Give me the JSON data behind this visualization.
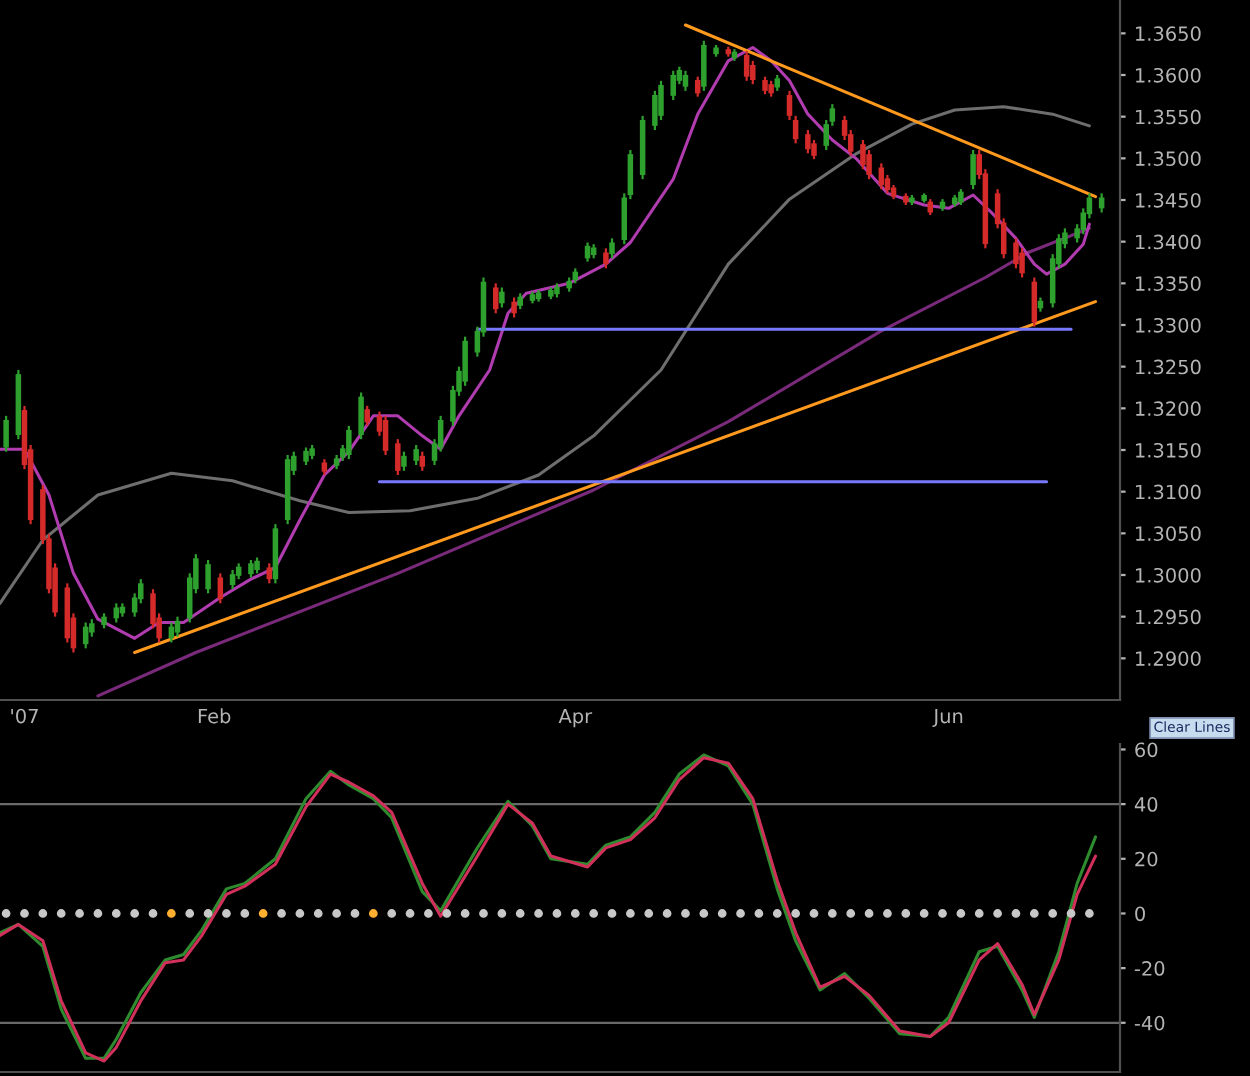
{
  "chart_data": [
    {
      "type": "candlestick",
      "x": [
        "2006-12-29",
        "2006-12-31",
        "2007-01-01",
        "2007-01-02",
        "2007-01-04",
        "2007-01-05",
        "2007-01-06",
        "2007-01-08",
        "2007-01-09",
        "2007-01-11",
        "2007-01-12",
        "2007-01-14",
        "2007-01-16",
        "2007-01-17",
        "2007-01-19",
        "2007-01-20",
        "2007-01-22",
        "2007-01-23",
        "2007-01-25",
        "2007-01-26",
        "2007-01-28",
        "2007-01-29",
        "2007-01-31",
        "2007-02-02",
        "2007-02-04",
        "2007-02-05",
        "2007-02-07",
        "2007-02-08",
        "2007-02-10",
        "2007-02-11",
        "2007-02-13",
        "2007-02-14",
        "2007-02-16",
        "2007-02-17",
        "2007-02-19",
        "2007-02-21",
        "2007-02-22",
        "2007-02-23",
        "2007-02-25",
        "2007-02-26",
        "2007-02-28",
        "2007-03-01",
        "2007-03-03",
        "2007-03-04",
        "2007-03-06",
        "2007-03-07",
        "2007-03-09",
        "2007-03-10",
        "2007-03-12",
        "2007-03-13",
        "2007-03-14",
        "2007-03-16",
        "2007-03-17",
        "2007-03-19",
        "2007-03-20",
        "2007-03-22",
        "2007-03-23",
        "2007-03-25",
        "2007-03-26",
        "2007-03-28",
        "2007-03-29",
        "2007-03-31",
        "2007-04-01",
        "2007-04-03",
        "2007-04-04",
        "2007-04-06",
        "2007-04-07",
        "2007-04-09",
        "2007-04-10",
        "2007-04-12",
        "2007-04-14",
        "2007-04-15",
        "2007-04-17",
        "2007-04-18",
        "2007-04-19",
        "2007-04-21",
        "2007-04-22",
        "2007-04-24",
        "2007-04-26",
        "2007-04-27",
        "2007-04-29",
        "2007-04-30",
        "2007-05-02",
        "2007-05-03",
        "2007-05-04",
        "2007-05-06",
        "2007-05-07",
        "2007-05-09",
        "2007-05-10",
        "2007-05-12",
        "2007-05-13",
        "2007-05-15",
        "2007-05-16",
        "2007-05-18",
        "2007-05-19",
        "2007-05-21",
        "2007-05-22",
        "2007-05-23",
        "2007-05-25",
        "2007-05-26",
        "2007-05-28",
        "2007-05-29",
        "2007-05-31",
        "2007-06-02",
        "2007-06-03",
        "2007-06-05",
        "2007-06-06",
        "2007-06-07",
        "2007-06-09",
        "2007-06-10",
        "2007-06-12",
        "2007-06-13",
        "2007-06-15",
        "2007-06-16",
        "2007-06-18",
        "2007-06-19",
        "2007-06-20",
        "2007-06-22",
        "2007-06-23",
        "2007-06-24",
        "2007-06-26"
      ],
      "ohlc": [
        [
          1.3153,
          1.3191,
          1.3148,
          1.3186
        ],
        [
          1.3168,
          1.3246,
          1.3163,
          1.3241
        ],
        [
          1.3198,
          1.3203,
          1.3127,
          1.3132
        ],
        [
          1.3151,
          1.3156,
          1.3061,
          1.3066
        ],
        [
          1.3103,
          1.3108,
          1.3037,
          1.3042
        ],
        [
          1.3044,
          1.3049,
          1.2978,
          1.2983
        ],
        [
          1.3009,
          1.3014,
          1.295,
          1.2955
        ],
        [
          1.2985,
          1.299,
          1.2919,
          1.2924
        ],
        [
          1.2949,
          1.2954,
          1.2907,
          1.2912
        ],
        [
          1.2917,
          1.2943,
          1.2912,
          1.2938
        ],
        [
          1.2931,
          1.2947,
          1.2926,
          1.2942
        ],
        [
          1.294,
          1.2954,
          1.2936,
          1.295
        ],
        [
          1.2948,
          1.2966,
          1.2943,
          1.2961
        ],
        [
          1.2954,
          1.2966,
          1.295,
          1.2962
        ],
        [
          1.2955,
          1.2978,
          1.295,
          1.2973
        ],
        [
          1.2971,
          1.2995,
          1.2966,
          1.299
        ],
        [
          1.2978,
          1.2983,
          1.2936,
          1.2941
        ],
        [
          1.2949,
          1.2954,
          1.2919,
          1.2924
        ],
        [
          1.2924,
          1.2943,
          1.2919,
          1.2938
        ],
        [
          1.2931,
          1.295,
          1.2926,
          1.2945
        ],
        [
          1.2948,
          1.3002,
          1.2943,
          1.2997
        ],
        [
          1.2983,
          1.3025,
          1.2978,
          1.302
        ],
        [
          1.2983,
          1.3018,
          1.2978,
          1.3013
        ],
        [
          1.2997,
          1.3002,
          1.2966,
          1.2971
        ],
        [
          1.2988,
          1.3006,
          1.2983,
          1.3001
        ],
        [
          1.2999,
          1.3014,
          1.2995,
          1.301
        ],
        [
          1.3001,
          1.3018,
          1.2997,
          1.3014
        ],
        [
          1.3006,
          1.3021,
          1.3002,
          1.3017
        ],
        [
          1.3009,
          1.3014,
          1.299,
          1.2995
        ],
        [
          1.2995,
          1.3061,
          1.299,
          1.3056
        ],
        [
          1.3066,
          1.3144,
          1.3061,
          1.3139
        ],
        [
          1.3125,
          1.3148,
          1.312,
          1.3143
        ],
        [
          1.3136,
          1.3153,
          1.3132,
          1.3149
        ],
        [
          1.3143,
          1.3156,
          1.3139,
          1.3152
        ],
        [
          1.3135,
          1.3139,
          1.312,
          1.3124
        ],
        [
          1.3131,
          1.3144,
          1.3127,
          1.314
        ],
        [
          1.3141,
          1.3156,
          1.3137,
          1.3152
        ],
        [
          1.3144,
          1.3179,
          1.3139,
          1.3174
        ],
        [
          1.3168,
          1.3219,
          1.3163,
          1.3214
        ],
        [
          1.3199,
          1.3203,
          1.3179,
          1.3183
        ],
        [
          1.3191,
          1.3196,
          1.3167,
          1.3172
        ],
        [
          1.3186,
          1.3191,
          1.3144,
          1.3149
        ],
        [
          1.3158,
          1.3163,
          1.312,
          1.3125
        ],
        [
          1.313,
          1.3148,
          1.3125,
          1.3143
        ],
        [
          1.3137,
          1.3156,
          1.3132,
          1.3151
        ],
        [
          1.3143,
          1.3148,
          1.3125,
          1.313
        ],
        [
          1.3137,
          1.3163,
          1.3132,
          1.3158
        ],
        [
          1.3153,
          1.3191,
          1.3148,
          1.3186
        ],
        [
          1.3184,
          1.3227,
          1.3179,
          1.3222
        ],
        [
          1.322,
          1.325,
          1.3215,
          1.3245
        ],
        [
          1.3232,
          1.3286,
          1.3227,
          1.3281
        ],
        [
          1.3267,
          1.3298,
          1.3262,
          1.3293
        ],
        [
          1.3291,
          1.3357,
          1.3286,
          1.3352
        ],
        [
          1.3345,
          1.335,
          1.3314,
          1.3319
        ],
        [
          1.3326,
          1.3345,
          1.3321,
          1.334
        ],
        [
          1.3328,
          1.3333,
          1.3309,
          1.3314
        ],
        [
          1.3323,
          1.3338,
          1.3319,
          1.3334
        ],
        [
          1.3329,
          1.334,
          1.3326,
          1.3337
        ],
        [
          1.3331,
          1.3342,
          1.3328,
          1.3339
        ],
        [
          1.3334,
          1.3345,
          1.3331,
          1.3342
        ],
        [
          1.3337,
          1.335,
          1.3333,
          1.3346
        ],
        [
          1.3344,
          1.3357,
          1.334,
          1.3353
        ],
        [
          1.3354,
          1.3368,
          1.335,
          1.3364
        ],
        [
          1.338,
          1.3399,
          1.3376,
          1.3395
        ],
        [
          1.3384,
          1.3397,
          1.338,
          1.3393
        ],
        [
          1.3387,
          1.3392,
          1.3368,
          1.3373
        ],
        [
          1.3385,
          1.3404,
          1.338,
          1.3399
        ],
        [
          1.3402,
          1.3458,
          1.3397,
          1.3453
        ],
        [
          1.3456,
          1.351,
          1.3451,
          1.3505
        ],
        [
          1.348,
          1.3551,
          1.3475,
          1.3546
        ],
        [
          1.3539,
          1.3581,
          1.3534,
          1.3576
        ],
        [
          1.3551,
          1.3593,
          1.3546,
          1.3588
        ],
        [
          1.3575,
          1.3605,
          1.357,
          1.36
        ],
        [
          1.3593,
          1.361,
          1.3589,
          1.3606
        ],
        [
          1.3586,
          1.3605,
          1.3581,
          1.36
        ],
        [
          1.3594,
          1.3598,
          1.3574,
          1.3578
        ],
        [
          1.3586,
          1.3641,
          1.3581,
          1.3636
        ],
        [
          1.3625,
          1.3636,
          1.3622,
          1.3633
        ],
        [
          1.3631,
          1.3634,
          1.3622,
          1.3625
        ],
        [
          1.362,
          1.3631,
          1.3617,
          1.3628
        ],
        [
          1.3624,
          1.3629,
          1.3593,
          1.3598
        ],
        [
          1.3612,
          1.3617,
          1.3589,
          1.3594
        ],
        [
          1.3594,
          1.3598,
          1.3577,
          1.3581
        ],
        [
          1.3589,
          1.3593,
          1.3574,
          1.3578
        ],
        [
          1.3585,
          1.36,
          1.3581,
          1.3596
        ],
        [
          1.3576,
          1.3581,
          1.3546,
          1.3551
        ],
        [
          1.3546,
          1.3551,
          1.3518,
          1.3523
        ],
        [
          1.3529,
          1.3534,
          1.3506,
          1.3511
        ],
        [
          1.3518,
          1.3522,
          1.3499,
          1.3503
        ],
        [
          1.3515,
          1.3546,
          1.351,
          1.3541
        ],
        [
          1.3544,
          1.3565,
          1.3539,
          1.356
        ],
        [
          1.3546,
          1.3551,
          1.3522,
          1.3527
        ],
        [
          1.3529,
          1.3534,
          1.3503,
          1.3508
        ],
        [
          1.3517,
          1.3522,
          1.3487,
          1.3492
        ],
        [
          1.3505,
          1.351,
          1.3475,
          1.348
        ],
        [
          1.3489,
          1.3494,
          1.3463,
          1.3468
        ],
        [
          1.3476,
          1.348,
          1.3458,
          1.3462
        ],
        [
          1.3465,
          1.3468,
          1.3451,
          1.3454
        ],
        [
          1.3455,
          1.3458,
          1.3444,
          1.3447
        ],
        [
          1.3447,
          1.3456,
          1.3444,
          1.3453
        ],
        [
          1.3449,
          1.3458,
          1.3447,
          1.3456
        ],
        [
          1.3448,
          1.3451,
          1.3432,
          1.3435
        ],
        [
          1.344,
          1.3451,
          1.3437,
          1.3448
        ],
        [
          1.3445,
          1.3456,
          1.3442,
          1.3453
        ],
        [
          1.3447,
          1.3463,
          1.3444,
          1.346
        ],
        [
          1.3468,
          1.351,
          1.3463,
          1.3505
        ],
        [
          1.3505,
          1.351,
          1.3475,
          1.348
        ],
        [
          1.3482,
          1.3487,
          1.3392,
          1.3397
        ],
        [
          1.3458,
          1.3463,
          1.3416,
          1.3421
        ],
        [
          1.3423,
          1.3428,
          1.338,
          1.3385
        ],
        [
          1.3399,
          1.3404,
          1.3368,
          1.3373
        ],
        [
          1.3387,
          1.3392,
          1.3357,
          1.3362
        ],
        [
          1.3352,
          1.3357,
          1.3298,
          1.3303
        ],
        [
          1.332,
          1.3333,
          1.3316,
          1.3329
        ],
        [
          1.3326,
          1.3385,
          1.3321,
          1.338
        ],
        [
          1.3373,
          1.3409,
          1.3368,
          1.3404
        ],
        [
          1.3397,
          1.3416,
          1.3392,
          1.3411
        ],
        [
          1.3404,
          1.3421,
          1.3399,
          1.3416
        ],
        [
          1.3414,
          1.344,
          1.3409,
          1.3435
        ],
        [
          1.3433,
          1.3458,
          1.3428,
          1.3453
        ],
        [
          1.344,
          1.3458,
          1.3435,
          1.3453
        ]
      ],
      "colors": [
        "#2ea02e",
        "#2ea02e",
        "#d42a2a",
        "#d42a2a",
        "#d42a2a",
        "#d42a2a",
        "#d42a2a",
        "#d42a2a",
        "#d42a2a",
        "#2ea02e",
        "#2ea02e",
        "#2ea02e",
        "#2ea02e",
        "#2ea02e",
        "#2ea02e",
        "#2ea02e",
        "#d42a2a",
        "#d42a2a",
        "#2ea02e",
        "#2ea02e",
        "#2ea02e",
        "#2ea02e",
        "#2ea02e",
        "#d42a2a",
        "#2ea02e",
        "#2ea02e",
        "#2ea02e",
        "#2ea02e",
        "#d42a2a",
        "#2ea02e",
        "#2ea02e",
        "#2ea02e",
        "#2ea02e",
        "#2ea02e",
        "#d42a2a",
        "#2ea02e",
        "#2ea02e",
        "#2ea02e",
        "#2ea02e",
        "#d42a2a",
        "#d42a2a",
        "#d42a2a",
        "#d42a2a",
        "#2ea02e",
        "#2ea02e",
        "#d42a2a",
        "#2ea02e",
        "#2ea02e",
        "#2ea02e",
        "#2ea02e",
        "#2ea02e",
        "#2ea02e",
        "#2ea02e",
        "#d42a2a",
        "#2ea02e",
        "#d42a2a",
        "#2ea02e",
        "#2ea02e",
        "#2ea02e",
        "#2ea02e",
        "#2ea02e",
        "#2ea02e",
        "#2ea02e",
        "#2ea02e",
        "#2ea02e",
        "#d42a2a",
        "#2ea02e",
        "#2ea02e",
        "#2ea02e",
        "#2ea02e",
        "#2ea02e",
        "#2ea02e",
        "#2ea02e",
        "#2ea02e",
        "#2ea02e",
        "#d42a2a",
        "#2ea02e",
        "#2ea02e",
        "#d42a2a",
        "#2ea02e",
        "#d42a2a",
        "#d42a2a",
        "#d42a2a",
        "#d42a2a",
        "#2ea02e",
        "#d42a2a",
        "#d42a2a",
        "#d42a2a",
        "#d42a2a",
        "#2ea02e",
        "#2ea02e",
        "#d42a2a",
        "#d42a2a",
        "#d42a2a",
        "#d42a2a",
        "#d42a2a",
        "#d42a2a",
        "#d42a2a",
        "#d42a2a",
        "#2ea02e",
        "#2ea02e",
        "#d42a2a",
        "#2ea02e",
        "#2ea02e",
        "#2ea02e",
        "#2ea02e",
        "#d42a2a",
        "#d42a2a",
        "#d42a2a",
        "#d42a2a",
        "#d42a2a",
        "#d42a2a",
        "#d42a2a",
        "#2ea02e",
        "#2ea02e",
        "#2ea02e",
        "#2ea02e",
        "#2ea02e",
        "#2ea02e",
        "#2ea02e",
        "#2ea02e"
      ],
      "series": [
        {
          "type": "line",
          "color": "#6e6e6e",
          "x": [
            "2006-12-28",
            "2007-01-04",
            "2007-01-13",
            "2007-01-25",
            "2007-02-04",
            "2007-02-15",
            "2007-02-23",
            "2007-03-05",
            "2007-03-16",
            "2007-03-26",
            "2007-04-04",
            "2007-04-15",
            "2007-04-26",
            "2007-05-06",
            "2007-05-17",
            "2007-05-26",
            "2007-06-02",
            "2007-06-10",
            "2007-06-18",
            "2007-06-24"
          ],
          "values": [
            1.2966,
            1.3042,
            1.3096,
            1.3122,
            1.3113,
            1.3089,
            1.3075,
            1.3077,
            1.3092,
            1.312,
            1.3167,
            1.3246,
            1.3373,
            1.3451,
            1.3506,
            1.3541,
            1.3558,
            1.3562,
            1.3553,
            1.3539
          ]
        },
        {
          "type": "line",
          "color": "#7a2a7a",
          "x": [
            "2007-01-13",
            "2007-01-29",
            "2007-03-03",
            "2007-04-04",
            "2007-04-26",
            "2007-05-21",
            "2007-06-07",
            "2007-06-14",
            "2007-06-24"
          ],
          "values": [
            1.2855,
            1.2907,
            1.3002,
            1.3102,
            1.3184,
            1.3293,
            1.3357,
            1.3387,
            1.3416
          ]
        },
        {
          "type": "line",
          "color": "#b03cb0",
          "x": [
            "2006-12-28",
            "2007-01-01",
            "2007-01-05",
            "2007-01-09",
            "2007-01-13",
            "2007-01-19",
            "2007-01-23",
            "2007-01-27",
            "2007-02-02",
            "2007-02-07",
            "2007-02-11",
            "2007-02-15",
            "2007-02-19",
            "2007-02-23",
            "2007-02-27",
            "2007-03-03",
            "2007-03-07",
            "2007-03-10",
            "2007-03-13",
            "2007-03-18",
            "2007-03-21",
            "2007-03-24",
            "2007-03-31",
            "2007-04-06",
            "2007-04-10",
            "2007-04-17",
            "2007-04-21",
            "2007-04-26",
            "2007-04-30",
            "2007-05-03",
            "2007-05-06",
            "2007-05-09",
            "2007-05-13",
            "2007-05-17",
            "2007-05-22",
            "2007-05-28",
            "2007-06-01",
            "2007-06-05",
            "2007-06-08",
            "2007-06-12",
            "2007-06-15",
            "2007-06-17",
            "2007-06-20",
            "2007-06-23",
            "2007-06-24"
          ],
          "values": [
            1.3151,
            1.3151,
            1.3096,
            1.3002,
            1.2947,
            1.2924,
            1.2943,
            1.2943,
            1.2973,
            1.2995,
            1.3009,
            1.3066,
            1.312,
            1.3148,
            1.3191,
            1.3191,
            1.3167,
            1.3151,
            1.3191,
            1.3246,
            1.3314,
            1.3338,
            1.335,
            1.3373,
            1.3399,
            1.3475,
            1.3553,
            1.3617,
            1.3633,
            1.3617,
            1.3593,
            1.3553,
            1.3522,
            1.3499,
            1.3458,
            1.3444,
            1.344,
            1.3456,
            1.3435,
            1.3404,
            1.3373,
            1.3361,
            1.3373,
            1.3397,
            1.3421
          ]
        },
        {
          "type": "line",
          "color": "#ff9a1e",
          "x": [
            "2007-01-19",
            "2007-06-25"
          ],
          "values": [
            1.2907,
            1.3328
          ]
        },
        {
          "type": "line",
          "color": "#ff9a1e",
          "x": [
            "2007-04-19",
            "2007-06-25"
          ],
          "values": [
            1.366,
            1.3454
          ]
        },
        {
          "type": "line",
          "color": "#7878ff",
          "x": [
            "2007-03-16",
            "2007-06-21"
          ],
          "values": [
            1.3295,
            1.3295
          ]
        },
        {
          "type": "line",
          "color": "#7878ff",
          "x": [
            "2007-02-28",
            "2007-06-17"
          ],
          "values": [
            1.3112,
            1.3112
          ]
        }
      ],
      "xlim": [
        "2006-12-28",
        "2007-06-29"
      ],
      "xticks": [
        {
          "value": "2007-01-01",
          "label": "'07"
        },
        {
          "value": "2007-02-01",
          "label": "Feb"
        },
        {
          "value": "2007-04-01",
          "label": "Apr"
        },
        {
          "value": "2007-06-01",
          "label": "Jun"
        }
      ],
      "ylim": [
        1.285,
        1.369
      ],
      "yticks": [
        {
          "value": 1.29,
          "label": "1.2900"
        },
        {
          "value": 1.295,
          "label": "1.2950"
        },
        {
          "value": 1.3,
          "label": "1.3000"
        },
        {
          "value": 1.305,
          "label": "1.3050"
        },
        {
          "value": 1.31,
          "label": "1.3100"
        },
        {
          "value": 1.315,
          "label": "1.3150"
        },
        {
          "value": 1.32,
          "label": "1.3200"
        },
        {
          "value": 1.325,
          "label": "1.3250"
        },
        {
          "value": 1.33,
          "label": "1.3300"
        },
        {
          "value": 1.335,
          "label": "1.3350"
        },
        {
          "value": 1.34,
          "label": "1.3400"
        },
        {
          "value": 1.345,
          "label": "1.3450"
        },
        {
          "value": 1.35,
          "label": "1.3500"
        },
        {
          "value": 1.355,
          "label": "1.3550"
        },
        {
          "value": 1.36,
          "label": "1.3600"
        },
        {
          "value": 1.365,
          "label": "1.3650"
        }
      ],
      "annotations": [
        "Clear Lines"
      ]
    },
    {
      "type": "line",
      "series": [
        {
          "color": "#2e8b2e",
          "x": [
            "2006-12-28",
            "2006-12-31",
            "2007-01-04",
            "2007-01-07",
            "2007-01-11",
            "2007-01-14",
            "2007-01-16",
            "2007-01-20",
            "2007-01-24",
            "2007-01-27",
            "2007-01-30",
            "2007-02-03",
            "2007-02-06",
            "2007-02-11",
            "2007-02-16",
            "2007-02-20",
            "2007-02-23",
            "2007-02-27",
            "2007-03-02",
            "2007-03-07",
            "2007-03-10",
            "2007-03-16",
            "2007-03-21",
            "2007-03-25",
            "2007-03-28",
            "2007-04-03",
            "2007-04-06",
            "2007-04-10",
            "2007-04-14",
            "2007-04-18",
            "2007-04-22",
            "2007-04-26",
            "2007-04-30",
            "2007-05-04",
            "2007-05-07",
            "2007-05-11",
            "2007-05-15",
            "2007-05-19",
            "2007-05-24",
            "2007-05-29",
            "2007-06-01",
            "2007-06-06",
            "2007-06-09",
            "2007-06-13",
            "2007-06-15",
            "2007-06-19",
            "2007-06-22",
            "2007-06-25"
          ],
          "values": [
            -7,
            -4,
            -12,
            -35,
            -53,
            -53,
            -46,
            -29,
            -17,
            -15,
            -6,
            9,
            11,
            20,
            42,
            52,
            47,
            42,
            35,
            8,
            1,
            24,
            41,
            32,
            20,
            18,
            25,
            28,
            37,
            51,
            58,
            54,
            40,
            9,
            -10,
            -28,
            -22,
            -31,
            -44,
            -45,
            -38,
            -14,
            -12,
            -28,
            -38,
            -14,
            11,
            28
          ]
        },
        {
          "color": "#d0305a",
          "x": [
            "2006-12-28",
            "2006-12-31",
            "2007-01-04",
            "2007-01-07",
            "2007-01-11",
            "2007-01-14",
            "2007-01-16",
            "2007-01-20",
            "2007-01-24",
            "2007-01-27",
            "2007-01-30",
            "2007-02-03",
            "2007-02-06",
            "2007-02-11",
            "2007-02-16",
            "2007-02-20",
            "2007-02-23",
            "2007-02-27",
            "2007-03-02",
            "2007-03-07",
            "2007-03-10",
            "2007-03-16",
            "2007-03-21",
            "2007-03-25",
            "2007-03-28",
            "2007-04-03",
            "2007-04-06",
            "2007-04-10",
            "2007-04-14",
            "2007-04-18",
            "2007-04-22",
            "2007-04-26",
            "2007-04-30",
            "2007-05-04",
            "2007-05-07",
            "2007-05-11",
            "2007-05-15",
            "2007-05-19",
            "2007-05-24",
            "2007-05-29",
            "2007-06-01",
            "2007-06-06",
            "2007-06-09",
            "2007-06-13",
            "2007-06-15",
            "2007-06-19",
            "2007-06-22",
            "2007-06-25"
          ],
          "values": [
            -8,
            -4,
            -10,
            -32,
            -51,
            -54,
            -49,
            -32,
            -18,
            -17,
            -8,
            7,
            10,
            18,
            39,
            51,
            48,
            43,
            37,
            11,
            -1,
            21,
            40,
            33,
            21,
            17,
            24,
            27,
            35,
            49,
            57,
            55,
            42,
            12,
            -7,
            -27,
            -23,
            -30,
            -43,
            -45,
            -40,
            -17,
            -11,
            -26,
            -37,
            -17,
            7,
            21
          ]
        },
        {
          "type": "scatter",
          "marker": "circle",
          "x": [
            "2006-12-29",
            "2007-01-01",
            "2007-01-04",
            "2007-01-07",
            "2007-01-10",
            "2007-01-13",
            "2007-01-16",
            "2007-01-19",
            "2007-01-22",
            "2007-01-25",
            "2007-01-28",
            "2007-01-31",
            "2007-02-03",
            "2007-02-06",
            "2007-02-09",
            "2007-02-12",
            "2007-02-15",
            "2007-02-18",
            "2007-02-21",
            "2007-02-24",
            "2007-02-27",
            "2007-03-02",
            "2007-03-05",
            "2007-03-08",
            "2007-03-11",
            "2007-03-14",
            "2007-03-17",
            "2007-03-20",
            "2007-03-23",
            "2007-03-26",
            "2007-03-29",
            "2007-04-01",
            "2007-04-04",
            "2007-04-07",
            "2007-04-10",
            "2007-04-13",
            "2007-04-16",
            "2007-04-19",
            "2007-04-22",
            "2007-04-25",
            "2007-04-28",
            "2007-05-01",
            "2007-05-04",
            "2007-05-07",
            "2007-05-10",
            "2007-05-13",
            "2007-05-16",
            "2007-05-19",
            "2007-05-22",
            "2007-05-25",
            "2007-05-28",
            "2007-05-31",
            "2007-06-03",
            "2007-06-06",
            "2007-06-09",
            "2007-06-12",
            "2007-06-15",
            "2007-06-18",
            "2007-06-21",
            "2007-06-24"
          ],
          "values": [
            0,
            0,
            0,
            0,
            0,
            0,
            0,
            0,
            0,
            0,
            0,
            0,
            0,
            0,
            0,
            0,
            0,
            0,
            0,
            0,
            0,
            0,
            0,
            0,
            0,
            0,
            0,
            0,
            0,
            0,
            0,
            0,
            0,
            0,
            0,
            0,
            0,
            0,
            0,
            0,
            0,
            0,
            0,
            0,
            0,
            0,
            0,
            0,
            0,
            0,
            0,
            0,
            0,
            0,
            0,
            0,
            0,
            0,
            0,
            0
          ],
          "colors": [
            "#c8c8c8",
            "#c8c8c8",
            "#c8c8c8",
            "#c8c8c8",
            "#c8c8c8",
            "#c8c8c8",
            "#c8c8c8",
            "#c8c8c8",
            "#c8c8c8",
            "#ffb030",
            "#c8c8c8",
            "#c8c8c8",
            "#c8c8c8",
            "#c8c8c8",
            "#ffb030",
            "#c8c8c8",
            "#c8c8c8",
            "#c8c8c8",
            "#c8c8c8",
            "#c8c8c8",
            "#ffb030",
            "#c8c8c8",
            "#c8c8c8",
            "#c8c8c8",
            "#c8c8c8",
            "#c8c8c8",
            "#c8c8c8",
            "#c8c8c8",
            "#c8c8c8",
            "#c8c8c8",
            "#c8c8c8",
            "#c8c8c8",
            "#c8c8c8",
            "#c8c8c8",
            "#c8c8c8",
            "#c8c8c8",
            "#c8c8c8",
            "#c8c8c8",
            "#c8c8c8",
            "#c8c8c8",
            "#c8c8c8",
            "#c8c8c8",
            "#c8c8c8",
            "#c8c8c8",
            "#c8c8c8",
            "#c8c8c8",
            "#c8c8c8",
            "#c8c8c8",
            "#c8c8c8",
            "#c8c8c8",
            "#c8c8c8",
            "#c8c8c8",
            "#c8c8c8",
            "#c8c8c8",
            "#c8c8c8",
            "#c8c8c8",
            "#c8c8c8",
            "#c8c8c8",
            "#c8c8c8",
            "#c8c8c8"
          ]
        }
      ],
      "ref_lines": [
        {
          "axis": "y",
          "value": 40,
          "color": "#6a6a6a"
        },
        {
          "axis": "y",
          "value": -40,
          "color": "#6a6a6a"
        }
      ],
      "xlim": [
        "2006-12-28",
        "2007-06-29"
      ],
      "ylim": [
        -58,
        62
      ],
      "yticks": [
        -40,
        -20,
        0,
        20,
        40,
        60
      ],
      "tick_labels": "y"
    }
  ]
}
